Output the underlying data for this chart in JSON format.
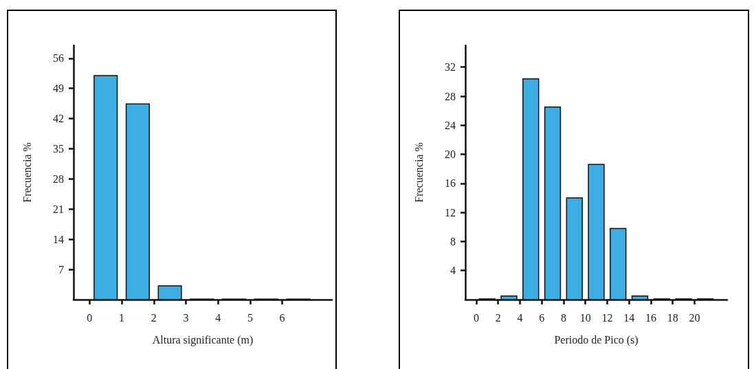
{
  "chart_data": [
    {
      "type": "histogram",
      "xlabel": "Altura significante (m)",
      "ylabel": "Frecuencia %",
      "bins": [
        0,
        1,
        2,
        3,
        4,
        5,
        6,
        7
      ],
      "values": [
        52.0,
        45.4,
        3.2,
        0.1,
        0.1,
        0.1,
        0.1
      ],
      "color": "#3daee3",
      "xlim": [
        -0.5,
        7.55
      ],
      "xticks": [
        0,
        1,
        2,
        3,
        4,
        5,
        6
      ],
      "ylim": [
        0,
        59
      ],
      "yticks": [
        7,
        14,
        21,
        28,
        35,
        42,
        49,
        56
      ],
      "grid": false
    },
    {
      "type": "histogram",
      "xlabel": "Periodo de Pico (s)",
      "ylabel": "Frecuencia %",
      "bins": [
        0,
        2,
        4,
        6,
        8,
        10,
        12,
        14,
        16,
        18,
        20,
        22
      ],
      "values": [
        0.1,
        0.5,
        30.4,
        26.5,
        14.0,
        18.6,
        9.8,
        0.5,
        0.1,
        0.1,
        0.1
      ],
      "color": "#3daee3",
      "xlim": [
        -1,
        23
      ],
      "xticks": [
        0,
        2,
        4,
        6,
        8,
        10,
        12,
        14,
        16,
        18,
        20
      ],
      "ylim": [
        0,
        35
      ],
      "yticks": [
        4,
        8,
        12,
        16,
        20,
        24,
        28,
        32
      ],
      "grid": false
    }
  ]
}
